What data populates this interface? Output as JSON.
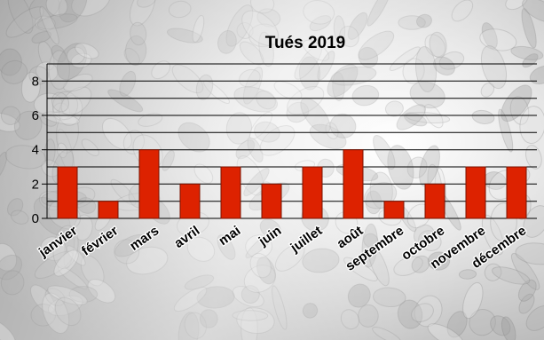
{
  "chart_data": {
    "type": "bar",
    "title": "Tués 2019",
    "xlabel": "",
    "ylabel": "",
    "categories": [
      "janvier",
      "février",
      "mars",
      "avril",
      "mai",
      "juin",
      "juillet",
      "août",
      "septembre",
      "octobre",
      "novembre",
      "décembre"
    ],
    "values": [
      3,
      1,
      4,
      2,
      3,
      2,
      3,
      4,
      1,
      2,
      3,
      3
    ],
    "ylim": [
      0,
      9
    ],
    "yticks": [
      0,
      2,
      4,
      6,
      8
    ],
    "grid": "horizontal every 1",
    "legend": "none",
    "bar_color": "#dd2200",
    "bar_edge_color": "#7a1200"
  }
}
